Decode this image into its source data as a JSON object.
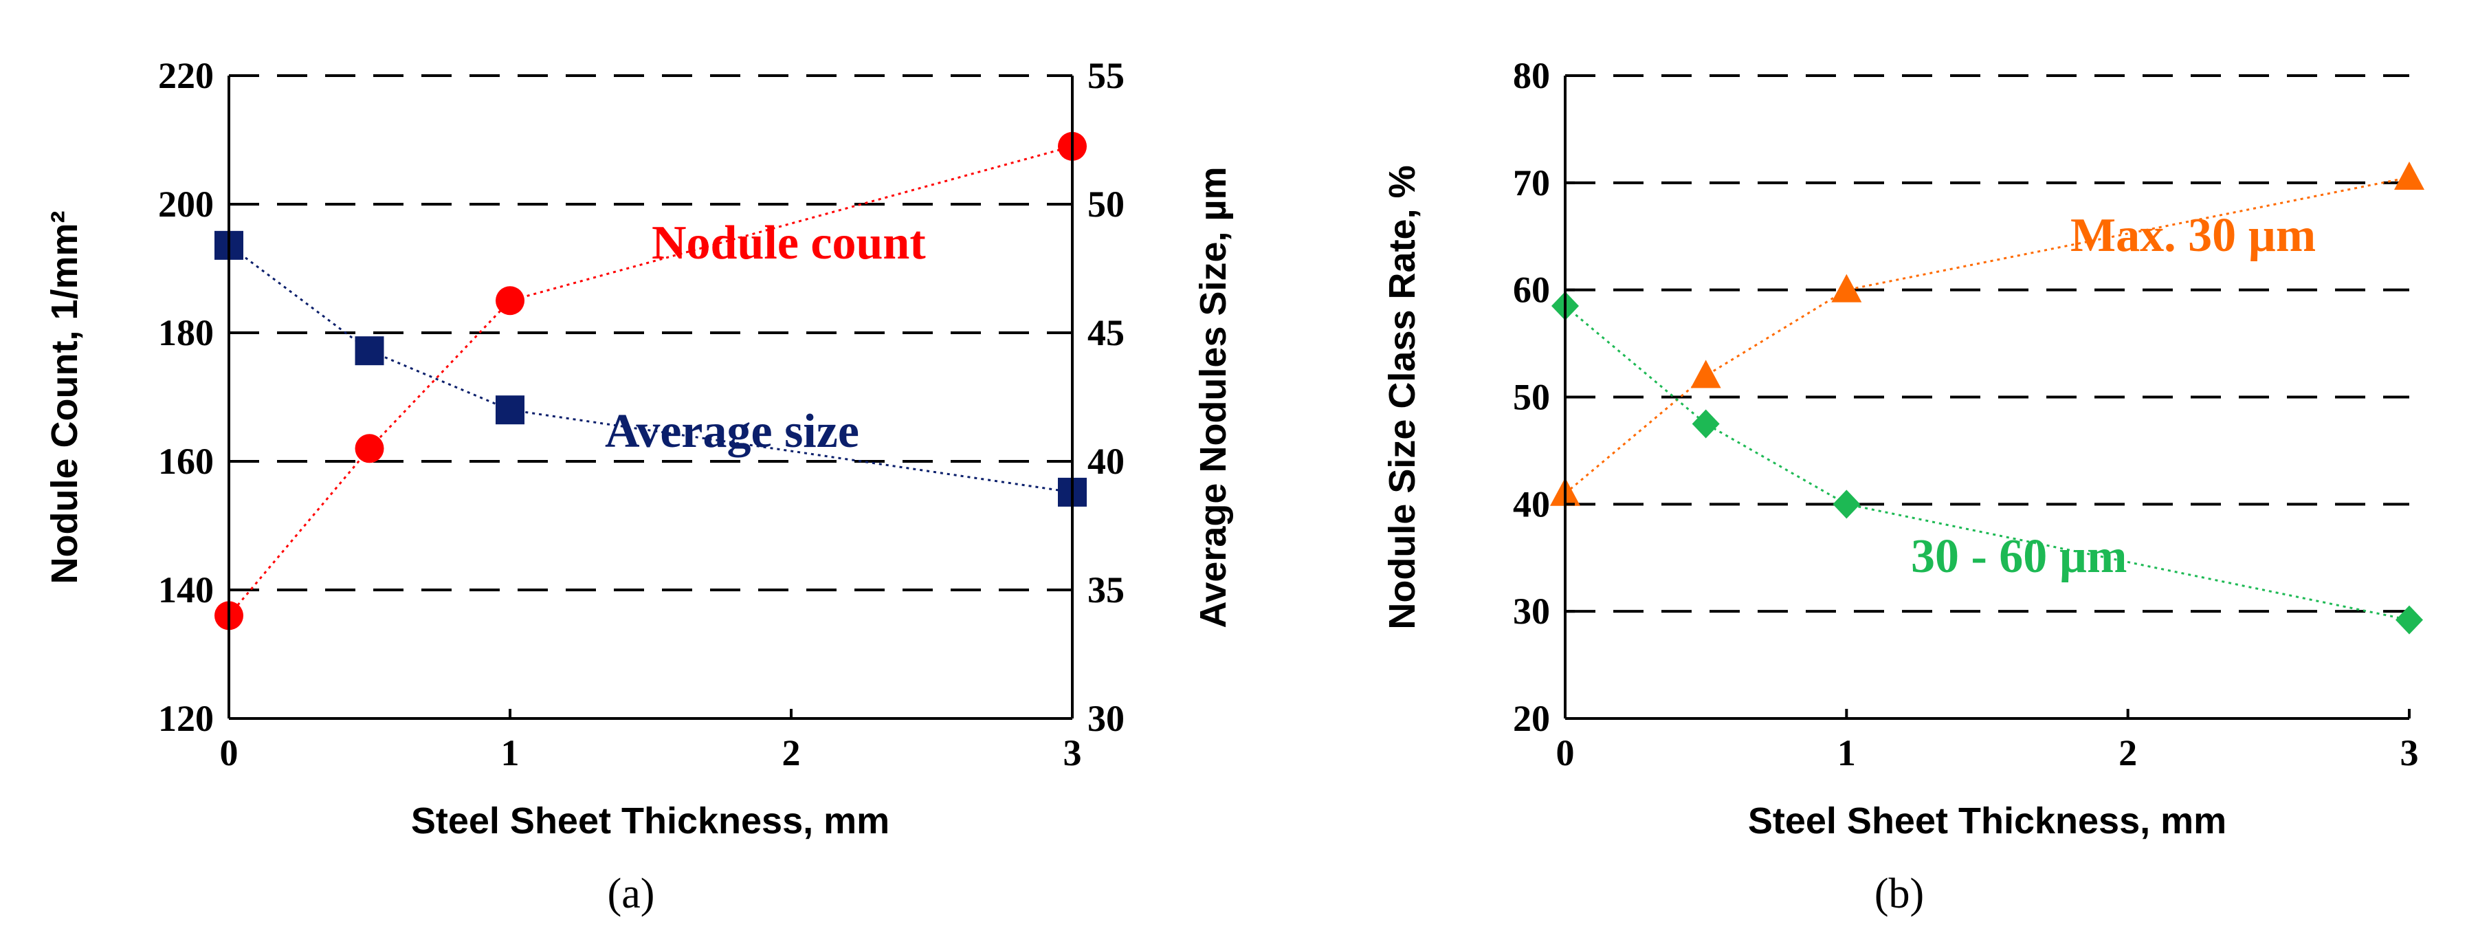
{
  "chart_data": [
    {
      "type": "scatter",
      "panel_label": "(a)",
      "xlabel": "Steel Sheet Thickness, mm",
      "ylabel_left": "Nodule Count, 1/mm²",
      "ylabel_right": "Average Nodules Size, µm",
      "xlim": [
        0,
        3
      ],
      "x_ticks": [
        "0",
        "1",
        "2",
        "3"
      ],
      "ylim_left": [
        120,
        220
      ],
      "y_ticks_left": [
        "120",
        "140",
        "160",
        "180",
        "200",
        "220"
      ],
      "ylim_right": [
        30,
        55
      ],
      "y_ticks_right": [
        "30",
        "35",
        "40",
        "45",
        "50",
        "55"
      ],
      "grid": "horizontal dashed",
      "series": [
        {
          "name": "Nodule count",
          "axis": "left",
          "color": "#ff0000",
          "marker": "circle",
          "x": [
            0,
            0.5,
            1,
            3
          ],
          "y": [
            136,
            162,
            185,
            209
          ]
        },
        {
          "name": "Average size",
          "axis": "right",
          "color": "#0b1f6b",
          "marker": "square",
          "x": [
            0,
            0.5,
            1,
            3
          ],
          "y": [
            48.4,
            44.3,
            42,
            38.8
          ]
        }
      ]
    },
    {
      "type": "scatter",
      "panel_label": "(b)",
      "xlabel": "Steel Sheet Thickness, mm",
      "ylabel": "Nodule Size Class Rate, %",
      "xlim": [
        0,
        3
      ],
      "x_ticks": [
        "0",
        "1",
        "2",
        "3"
      ],
      "ylim": [
        20,
        80
      ],
      "y_ticks": [
        "20",
        "30",
        "40",
        "50",
        "60",
        "70",
        "80"
      ],
      "grid": "horizontal dashed",
      "series": [
        {
          "name": "Max. 30 µm",
          "color": "#ff6a00",
          "marker": "triangle",
          "x": [
            0,
            0.5,
            1,
            3
          ],
          "y": [
            41,
            52,
            60,
            70.5
          ]
        },
        {
          "name": "30 - 60 µm",
          "color": "#1db954",
          "marker": "diamond",
          "x": [
            0,
            0.5,
            1,
            3
          ],
          "y": [
            58.5,
            47.5,
            40,
            29.2
          ]
        }
      ]
    }
  ]
}
